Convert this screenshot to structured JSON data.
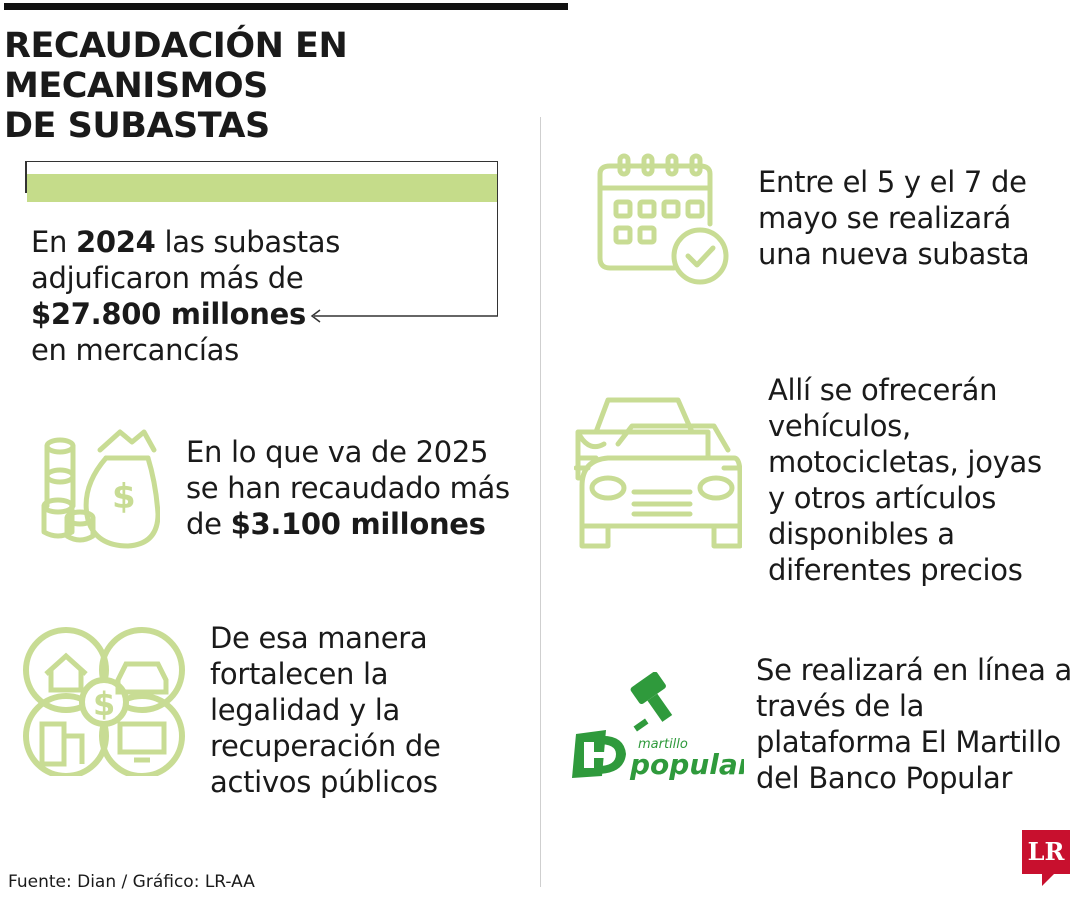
{
  "title_line1": "RECAUDACIÓN EN MECANISMOS",
  "title_line2": "DE SUBASTAS",
  "block1": {
    "pre": "En ",
    "year": "2024",
    "post": " las subastas",
    "line2": "adjuficaron más de",
    "amount": "$27.800 millones",
    "line4": "en mercancías"
  },
  "block2": {
    "line1": "En lo que va de 2025",
    "line2": "se han recaudado más",
    "pre3": "de ",
    "amount": "$3.100 millones"
  },
  "block3": {
    "lines": [
      "De esa manera",
      "fortalecen la",
      "legalidad y la",
      "recuperación de",
      "activos públicos"
    ]
  },
  "block4": {
    "lines": [
      "Entre el 5 y el 7 de",
      "mayo se realizará",
      "una nueva subasta"
    ]
  },
  "block5": {
    "lines": [
      "Allí se ofrecerán",
      "vehículos,",
      "motocicletas, joyas",
      "y otros artículos",
      "disponibles a",
      "diferentes precios"
    ]
  },
  "block6": {
    "lines": [
      "Se realizará en línea a",
      "través de la",
      "plataforma El Martillo",
      "del Banco Popular"
    ]
  },
  "logo": {
    "top": "martillo",
    "bottom": "popular"
  },
  "footer": "Fuente: Dian / Gráfico: LR-AA",
  "brand": "LR",
  "colors": {
    "accent_green": "#c5dc8a",
    "icon_green": "#c8dc94",
    "logo_green": "#2f9a3c",
    "brand_red": "#c8102e"
  },
  "icons": [
    "money-bag-icon",
    "houses-car-money-icon",
    "calendar-check-icon",
    "cars-icon",
    "gavel-icon"
  ]
}
